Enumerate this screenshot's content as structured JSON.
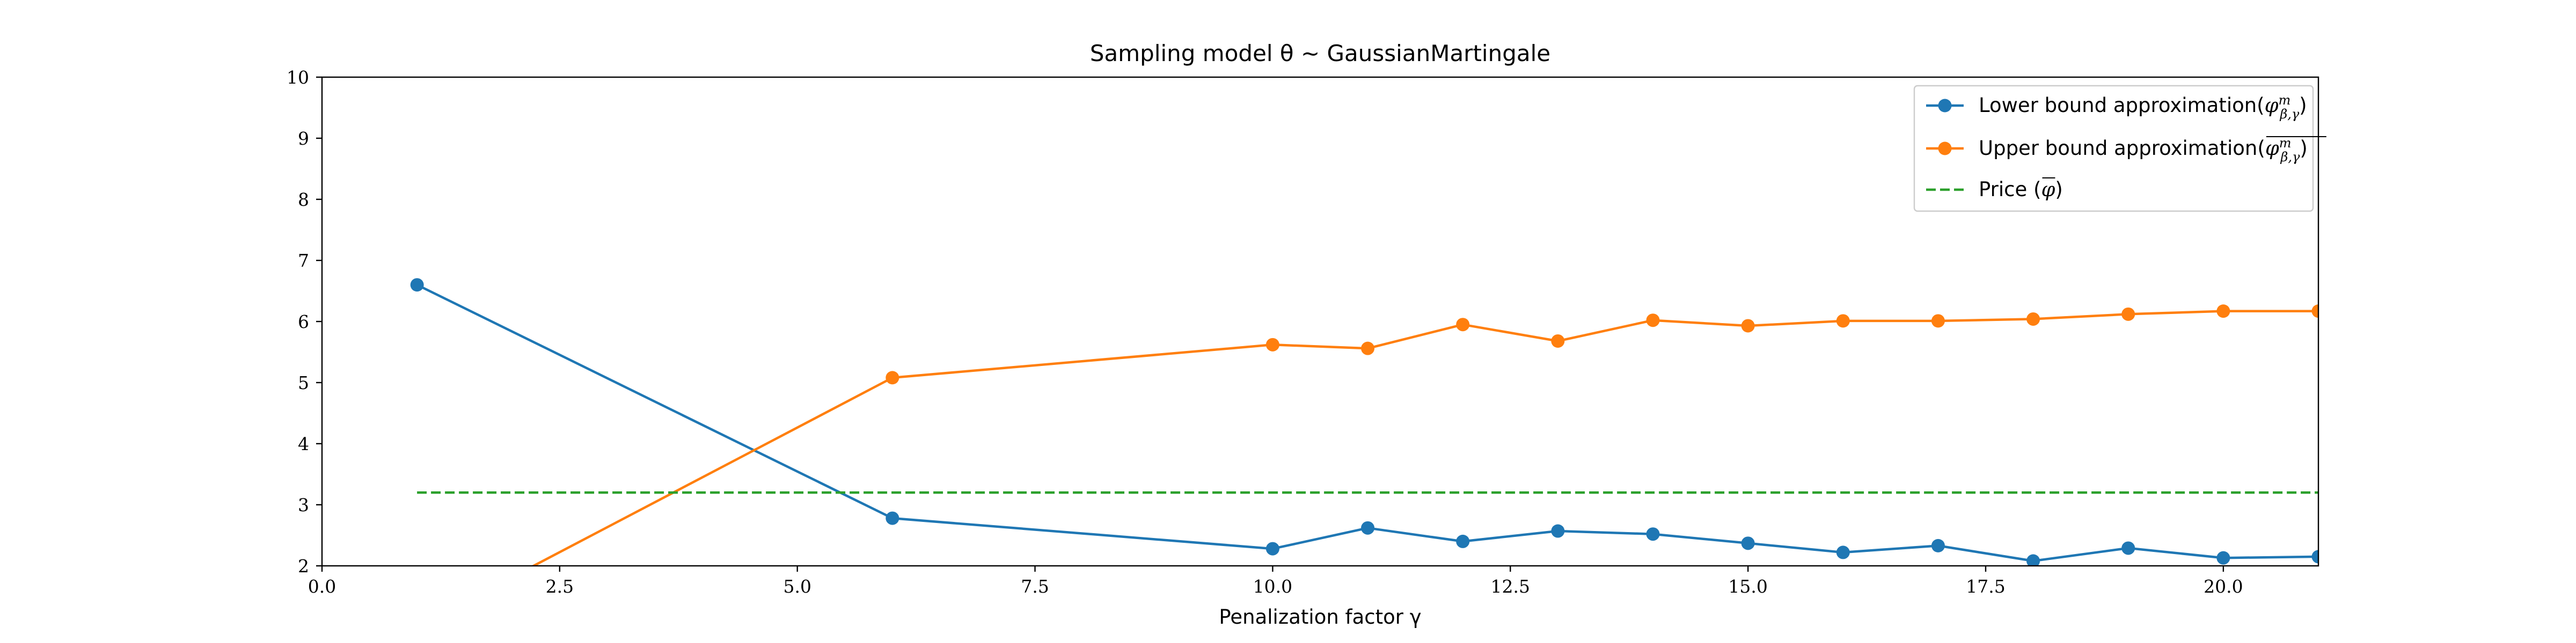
{
  "chart_data": {
    "type": "line",
    "title": "Sampling model θ ∼  GaussianMartingale",
    "xlabel": "Penalization factor γ",
    "ylabel": "",
    "xlim": [
      0,
      21
    ],
    "ylim": [
      2,
      10
    ],
    "xticks": [
      0.0,
      2.5,
      5.0,
      7.5,
      10.0,
      12.5,
      15.0,
      17.5,
      20.0
    ],
    "xtick_labels": [
      "0.0",
      "2.5",
      "5.0",
      "7.5",
      "10.0",
      "12.5",
      "15.0",
      "17.5",
      "20.0"
    ],
    "yticks": [
      2,
      3,
      4,
      5,
      6,
      7,
      8,
      9,
      10
    ],
    "ytick_labels": [
      "2",
      "3",
      "4",
      "5",
      "6",
      "7",
      "8",
      "9",
      "10"
    ],
    "grid": false,
    "legend_position": "top-right",
    "series": [
      {
        "name": "Lower bound approximation(φ^m_β,γ)",
        "legend_prefix": "Lower bound approximation(",
        "legend_symbol": "lower",
        "color": "#1f77b4",
        "style": "solid-marker",
        "x": [
          1,
          6,
          10,
          11,
          12,
          13,
          14,
          15,
          16,
          17,
          18,
          19,
          20,
          21
        ],
        "y": [
          6.6,
          2.78,
          2.28,
          2.62,
          2.4,
          2.57,
          2.52,
          2.37,
          2.22,
          2.33,
          2.08,
          2.29,
          2.13,
          2.15
        ]
      },
      {
        "name": "Upper bound approximation(φ^m_β,γ)",
        "legend_prefix": "Upper bound approximation(",
        "legend_symbol": "upper",
        "color": "#ff7f0e",
        "style": "solid-marker",
        "x": [
          1,
          6,
          10,
          11,
          12,
          13,
          14,
          15,
          16,
          17,
          18,
          19,
          20,
          21
        ],
        "y": [
          1.0,
          5.08,
          5.62,
          5.56,
          5.95,
          5.68,
          6.02,
          5.93,
          6.01,
          6.01,
          6.04,
          6.12,
          6.17,
          6.17
        ]
      },
      {
        "name": "Price (φ)",
        "legend_prefix": "Price (",
        "legend_symbol": "price",
        "color": "#2ca02c",
        "style": "dashed",
        "x": [
          1,
          21
        ],
        "y": [
          3.2,
          3.2
        ]
      }
    ]
  }
}
